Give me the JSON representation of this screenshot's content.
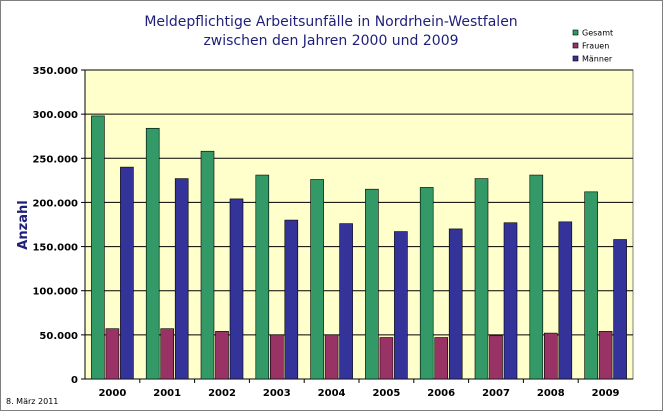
{
  "chart_data": {
    "type": "bar",
    "title_line1": "Meldepflichtige Arbeitsunfälle in Nordrhein-Westfalen",
    "title_line2": "zwischen den Jahren 2000 und 2009",
    "ylabel": "Anzahl",
    "xlabel": "",
    "categories": [
      "2000",
      "2001",
      "2002",
      "2003",
      "2004",
      "2005",
      "2006",
      "2007",
      "2008",
      "2009"
    ],
    "ylim": [
      0,
      350000
    ],
    "yticks": [
      {
        "value": 0,
        "label": "0"
      },
      {
        "value": 50000,
        "label": "50.000"
      },
      {
        "value": 100000,
        "label": "100.000"
      },
      {
        "value": 150000,
        "label": "150.000"
      },
      {
        "value": 200000,
        "label": "200.000"
      },
      {
        "value": 250000,
        "label": "250.000"
      },
      {
        "value": 300000,
        "label": "300.000"
      },
      {
        "value": 350000,
        "label": "350.000"
      }
    ],
    "series": [
      {
        "name": "Gesamt",
        "color": "#339966",
        "values": [
          298000,
          284000,
          258000,
          231000,
          226000,
          215000,
          217000,
          227000,
          231000,
          212000
        ]
      },
      {
        "name": "Frauen",
        "color": "#993366",
        "values": [
          57000,
          57000,
          54000,
          50000,
          50000,
          47000,
          47000,
          49000,
          52000,
          54000
        ]
      },
      {
        "name": "Männer",
        "color": "#333399",
        "values": [
          240000,
          227000,
          204000,
          180000,
          176000,
          167000,
          170000,
          177000,
          178000,
          158000
        ]
      }
    ],
    "grid": true,
    "legend_position": "top-right",
    "plot_background": "#ffffcc"
  },
  "footnote": "8. März 2011"
}
